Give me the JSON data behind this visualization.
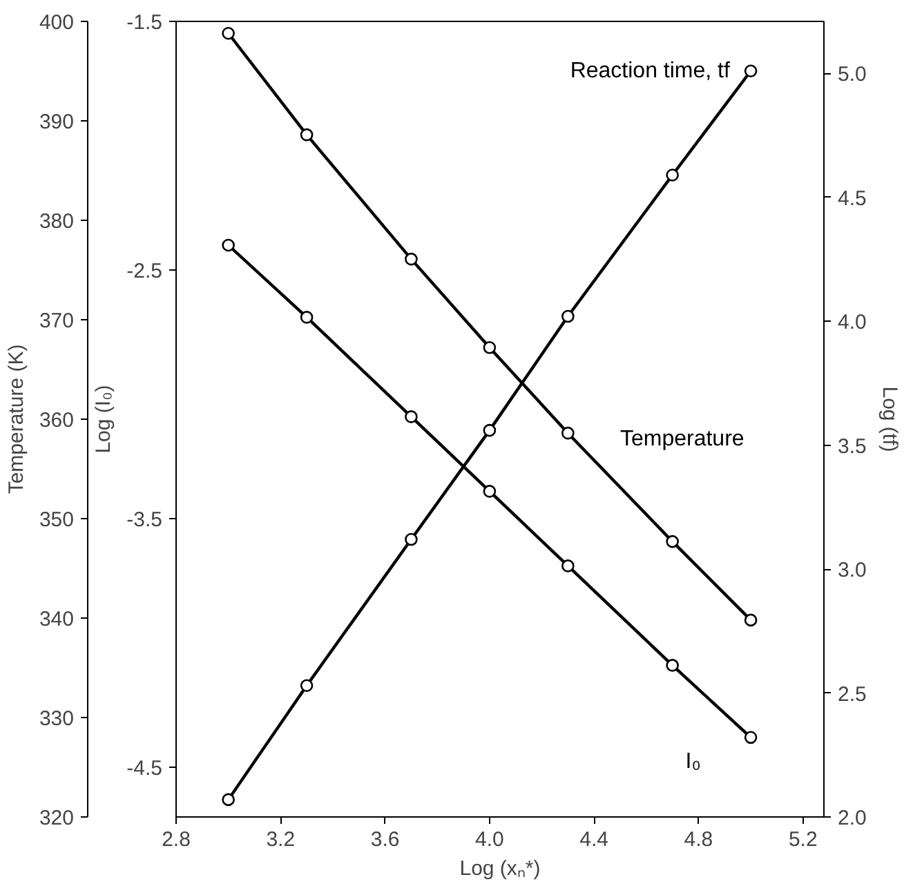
{
  "chart_data": {
    "type": "line",
    "xlabel": "Log (xₙ*)",
    "ylabel": "Temperature (K)",
    "y2label": "Log (I₀)",
    "y3label": "Log (tf)",
    "x": [
      3.0,
      3.3,
      3.7,
      4.0,
      4.3,
      4.7,
      5.0
    ],
    "xlim": [
      2.8,
      5.28
    ],
    "xticks": [
      2.8,
      3.2,
      3.6,
      {
        "value": 4,
        "label": "4.0"
      },
      4.4,
      4.8,
      5.2
    ],
    "ylim": [
      320,
      400
    ],
    "yticks": [
      320,
      330,
      340,
      350,
      360,
      370,
      380,
      390,
      400
    ],
    "y2lim": [
      -4.7,
      -1.5
    ],
    "y2ticks": [
      -4.5,
      -3.5,
      -2.5,
      -1.5
    ],
    "y3lim": [
      2.0,
      5.21
    ],
    "y3ticks": [
      {
        "value": 2,
        "label": "2.0"
      },
      2.5,
      {
        "value": 3,
        "label": "3.0"
      },
      3.5,
      {
        "value": 4,
        "label": "4.0"
      },
      4.5,
      {
        "value": 5,
        "label": "5.0"
      }
    ],
    "series": [
      {
        "name": "Temperature",
        "color": "#000000",
        "axis": "y",
        "values": [
          398.8,
          388.6,
          376.1,
          367.2,
          358.6,
          347.7,
          339.8
        ]
      },
      {
        "name": "I₀",
        "color": "#000000",
        "axis": "y2",
        "values": [
          -2.4,
          -2.69,
          -3.09,
          -3.39,
          -3.69,
          -4.09,
          -4.38
        ]
      },
      {
        "name": "Reaction time, tf",
        "color": "#000000",
        "axis": "y3",
        "values": [
          2.07,
          2.53,
          3.12,
          3.56,
          4.02,
          4.59,
          5.01
        ]
      }
    ],
    "marker": "circle",
    "line_style": "solid",
    "grid": false
  }
}
